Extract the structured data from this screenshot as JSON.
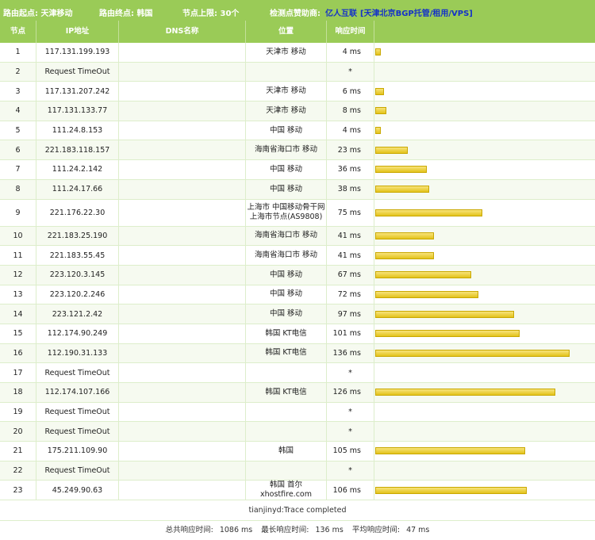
{
  "topbar": {
    "start": "路由起点: 天津移动",
    "end": "路由终点: 韩国",
    "limit": "节点上限: 30个",
    "sponsor_label": "检测点赞助商:",
    "sponsor_name": "亿人互联",
    "sponsor_desc": "[天津北京BGP托管/租用/VPS]"
  },
  "columns": {
    "hop": "节点",
    "ip": "IP地址",
    "dns": "DNS名称",
    "loc": "位置",
    "time": "响应时间"
  },
  "max_ms": 140,
  "rows": [
    {
      "hop": "1",
      "ip": "117.131.199.193",
      "dns": "",
      "loc": [
        "天津市 移动"
      ],
      "time": "4 ms",
      "ms": 4
    },
    {
      "hop": "2",
      "ip": "Request TimeOut",
      "dns": "",
      "loc": [],
      "time": "*",
      "ms": 0
    },
    {
      "hop": "3",
      "ip": "117.131.207.242",
      "dns": "",
      "loc": [
        "天津市 移动"
      ],
      "time": "6 ms",
      "ms": 6
    },
    {
      "hop": "4",
      "ip": "117.131.133.77",
      "dns": "",
      "loc": [
        "天津市 移动"
      ],
      "time": "8 ms",
      "ms": 8
    },
    {
      "hop": "5",
      "ip": "111.24.8.153",
      "dns": "",
      "loc": [
        "中国 移动"
      ],
      "time": "4 ms",
      "ms": 4
    },
    {
      "hop": "6",
      "ip": "221.183.118.157",
      "dns": "",
      "loc": [
        "海南省海口市 移动"
      ],
      "time": "23 ms",
      "ms": 23
    },
    {
      "hop": "7",
      "ip": "111.24.2.142",
      "dns": "",
      "loc": [
        "中国 移动"
      ],
      "time": "36 ms",
      "ms": 36
    },
    {
      "hop": "8",
      "ip": "111.24.17.66",
      "dns": "",
      "loc": [
        "中国 移动"
      ],
      "time": "38 ms",
      "ms": 38
    },
    {
      "hop": "9",
      "ip": "221.176.22.30",
      "dns": "",
      "loc": [
        "上海市 中国移动骨干网",
        "上海市节点(AS9808)"
      ],
      "time": "75 ms",
      "ms": 75
    },
    {
      "hop": "10",
      "ip": "221.183.25.190",
      "dns": "",
      "loc": [
        "海南省海口市 移动"
      ],
      "time": "41 ms",
      "ms": 41
    },
    {
      "hop": "11",
      "ip": "221.183.55.45",
      "dns": "",
      "loc": [
        "海南省海口市 移动"
      ],
      "time": "41 ms",
      "ms": 41
    },
    {
      "hop": "12",
      "ip": "223.120.3.145",
      "dns": "",
      "loc": [
        "中国 移动"
      ],
      "time": "67 ms",
      "ms": 67
    },
    {
      "hop": "13",
      "ip": "223.120.2.246",
      "dns": "",
      "loc": [
        "中国 移动"
      ],
      "time": "72 ms",
      "ms": 72
    },
    {
      "hop": "14",
      "ip": "223.121.2.42",
      "dns": "",
      "loc": [
        "中国 移动"
      ],
      "time": "97 ms",
      "ms": 97
    },
    {
      "hop": "15",
      "ip": "112.174.90.249",
      "dns": "",
      "loc": [
        "韩国 KT电信"
      ],
      "time": "101 ms",
      "ms": 101
    },
    {
      "hop": "16",
      "ip": "112.190.31.133",
      "dns": "",
      "loc": [
        "韩国 KT电信"
      ],
      "time": "136 ms",
      "ms": 136
    },
    {
      "hop": "17",
      "ip": "Request TimeOut",
      "dns": "",
      "loc": [],
      "time": "*",
      "ms": 0
    },
    {
      "hop": "18",
      "ip": "112.174.107.166",
      "dns": "",
      "loc": [
        "韩国 KT电信"
      ],
      "time": "126 ms",
      "ms": 126
    },
    {
      "hop": "19",
      "ip": "Request TimeOut",
      "dns": "",
      "loc": [],
      "time": "*",
      "ms": 0
    },
    {
      "hop": "20",
      "ip": "Request TimeOut",
      "dns": "",
      "loc": [],
      "time": "*",
      "ms": 0
    },
    {
      "hop": "21",
      "ip": "175.211.109.90",
      "dns": "",
      "loc": [
        "韩国"
      ],
      "time": "105 ms",
      "ms": 105
    },
    {
      "hop": "22",
      "ip": "Request TimeOut",
      "dns": "",
      "loc": [],
      "time": "*",
      "ms": 0
    },
    {
      "hop": "23",
      "ip": "45.249.90.63",
      "dns": "",
      "loc": [
        "韩国 首尔xhostfire.com"
      ],
      "time": "106 ms",
      "ms": 106
    }
  ],
  "footer": {
    "status": "tianjinyd:Trace completed",
    "total_label": "总共响应时间:",
    "total_value": "1086 ms",
    "max_label": "最长响应时间:",
    "max_value": "136 ms",
    "avg_label": "平均响应时间:",
    "avg_value": "47 ms"
  }
}
